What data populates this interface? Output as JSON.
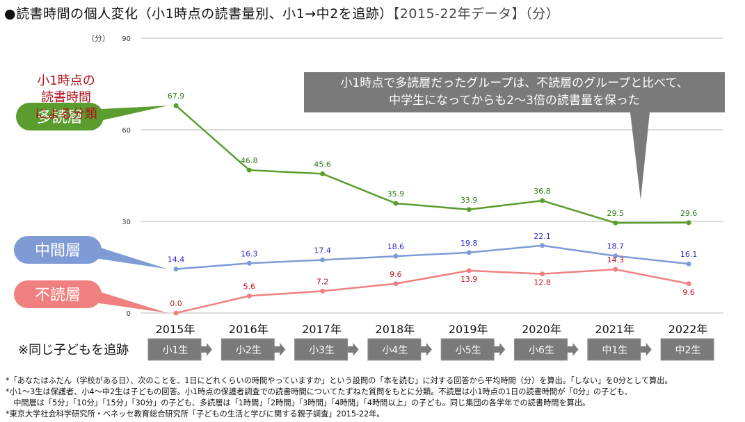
{
  "title": {
    "main": "●読書時間の個人変化（小1時点の読書量別、小1→中2を追跡）",
    "sub": "【2015-22年データ】（分）"
  },
  "classification_label": [
    "小1時点の",
    "読書時間",
    "による分類"
  ],
  "note_callout": [
    "小1時点で多読層だったグループは、不読層のグループと比べて、",
    "中学生になってからも2〜3倍の読書量を保った"
  ],
  "tracking_label": "※同じ子どもを追跡",
  "grades": [
    "小1生",
    "小2生",
    "小3生",
    "小4生",
    "小5生",
    "小6生",
    "中1生",
    "中2生"
  ],
  "footnotes": [
    "*「あなたはふだん（学校がある日）、次のことを、1日にどれくらいの時間やっていますか」という設問の「本を読む」に対する回答から平均時間（分）を算出。「しない」を0分として算出。",
    "*小1〜3生は保護者、小4〜中2生は子どもの回答。小1時点の保護者調査での読書時間についてたずねた質問をもとに分類。不読層は小1時点の1日の読書時間が「0分」の子ども、",
    "　中間層は「5分」「10分」「15分」「30分」の子ども、多読層は「1時間」「2時間」「3時間」「4時間」「4時間以上」の子ども。同じ集団の各学年での読書時間を算出。",
    "*東京大学社会科学研究所・ベネッセ教育総合研究所「子どもの生活と学びに関する親子調査」2015-22年。"
  ],
  "chart_data": {
    "type": "line",
    "title": "読書時間の個人変化（小1時点の読書量別、小1→中2を追跡）【2015-22年データ】（分）",
    "categories": [
      "2015年",
      "2016年",
      "2017年",
      "2018年",
      "2019年",
      "2020年",
      "2021年",
      "2022年"
    ],
    "ylabel": "（分）",
    "ylim": [
      0,
      90
    ],
    "yticks": [
      0,
      30,
      60,
      90
    ],
    "grid": true,
    "series": [
      {
        "name": "多読層",
        "color": "#5b9c2e",
        "label_color": "#2e7d16",
        "values": [
          67.9,
          46.8,
          45.6,
          35.9,
          33.9,
          36.8,
          29.5,
          29.6
        ]
      },
      {
        "name": "中間層",
        "color": "#7f9bd6",
        "label_color": "#2a2acc",
        "values": [
          14.4,
          16.3,
          17.4,
          18.6,
          19.8,
          22.1,
          18.7,
          16.1
        ]
      },
      {
        "name": "不読層",
        "color": "#f08080",
        "label_color": "#c0101a",
        "values": [
          0.0,
          5.6,
          7.2,
          9.6,
          13.9,
          12.8,
          14.3,
          9.6
        ]
      }
    ],
    "legend": "left-callouts"
  }
}
